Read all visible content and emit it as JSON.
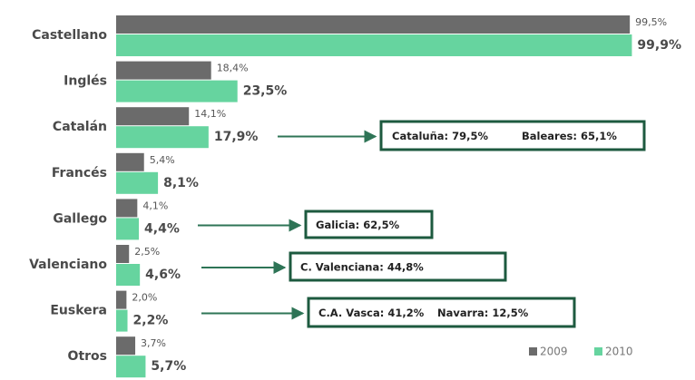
{
  "chart_data": {
    "type": "bar",
    "orientation": "horizontal",
    "categories": [
      "Castellano",
      "Inglés",
      "Catalán",
      "Francés",
      "Gallego",
      "Valenciano",
      "Euskera",
      "Otros"
    ],
    "series": [
      {
        "name": "2009",
        "color": "#6b6b6b",
        "values": [
          99.5,
          18.4,
          14.1,
          5.4,
          4.1,
          2.5,
          2.0,
          3.7
        ],
        "value_labels": [
          "99,5%",
          "18,4%",
          "14,1%",
          "5,4%",
          "4,1%",
          "2,5%",
          "2,0%",
          "3,7%"
        ]
      },
      {
        "name": "2010",
        "color": "#66d49f",
        "values": [
          99.9,
          23.5,
          17.9,
          8.1,
          4.4,
          4.6,
          2.2,
          5.7
        ],
        "value_labels": [
          "99,9%",
          "23,5%",
          "17,9%",
          "8,1%",
          "4,4%",
          "4,6%",
          "2,2%",
          "5,7%"
        ]
      }
    ],
    "annotations": [
      [
        "Cataluña: 79,5%",
        "Baleares: 65,1%"
      ],
      [
        "Galicia: 62,5%"
      ],
      [
        "C. Valenciana: 44,8%"
      ],
      [
        "C.A. Vasca: 41,2%",
        "Navarra: 12,5%"
      ]
    ],
    "legend": "bottom-right"
  }
}
